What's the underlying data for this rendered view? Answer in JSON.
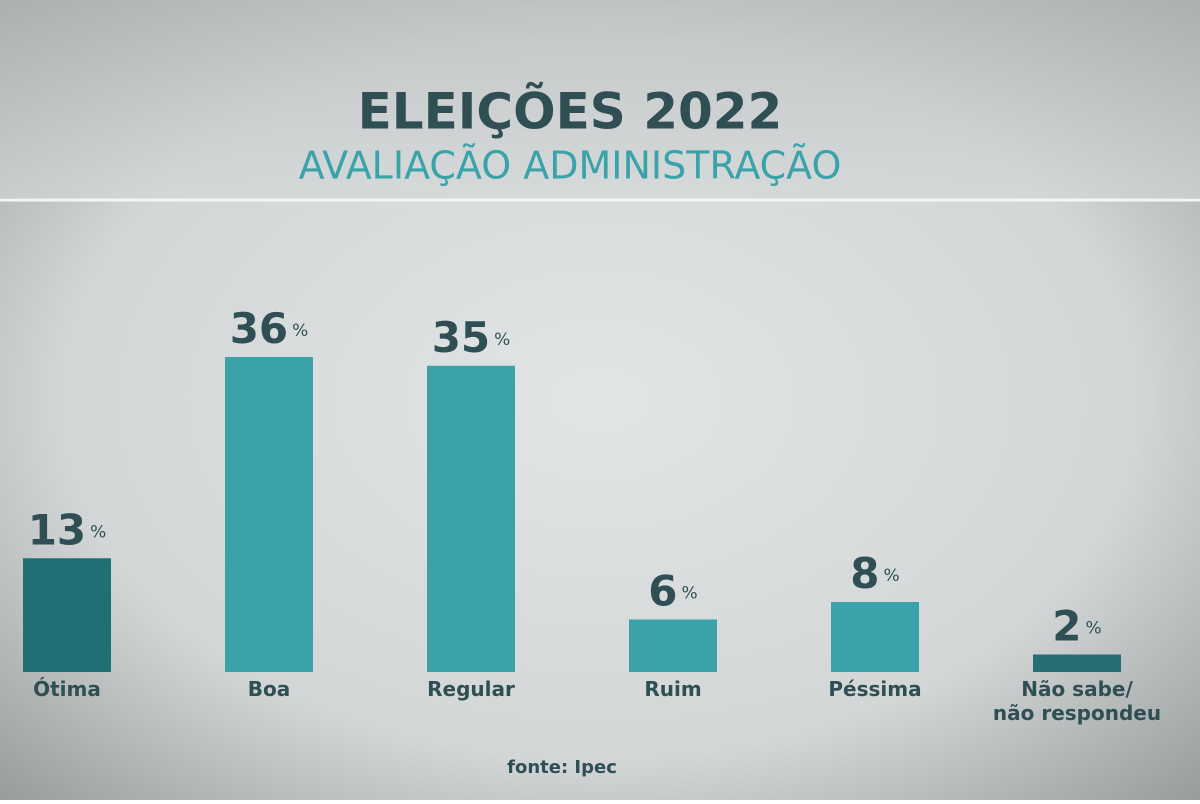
{
  "chart_data": {
    "type": "bar",
    "title": "ELEIÇÕES 2022",
    "subtitle": "AVALIAÇÃO ADMINISTRAÇÃO",
    "source": "fonte: Ipec",
    "categories": [
      "Ótima",
      "Boa",
      "Regular",
      "Ruim",
      "Péssima",
      "Não sabe/ não respondeu"
    ],
    "values": [
      13,
      36,
      35,
      6,
      8,
      2
    ],
    "value_labels": [
      "13%",
      "36%",
      "35%",
      "6%",
      "8%",
      "2%"
    ],
    "colors": [
      "#1f6f74",
      "#3aa3a9",
      "#3aa3a9",
      "#3aa3a9",
      "#3aa3a9",
      "#256f74"
    ]
  }
}
